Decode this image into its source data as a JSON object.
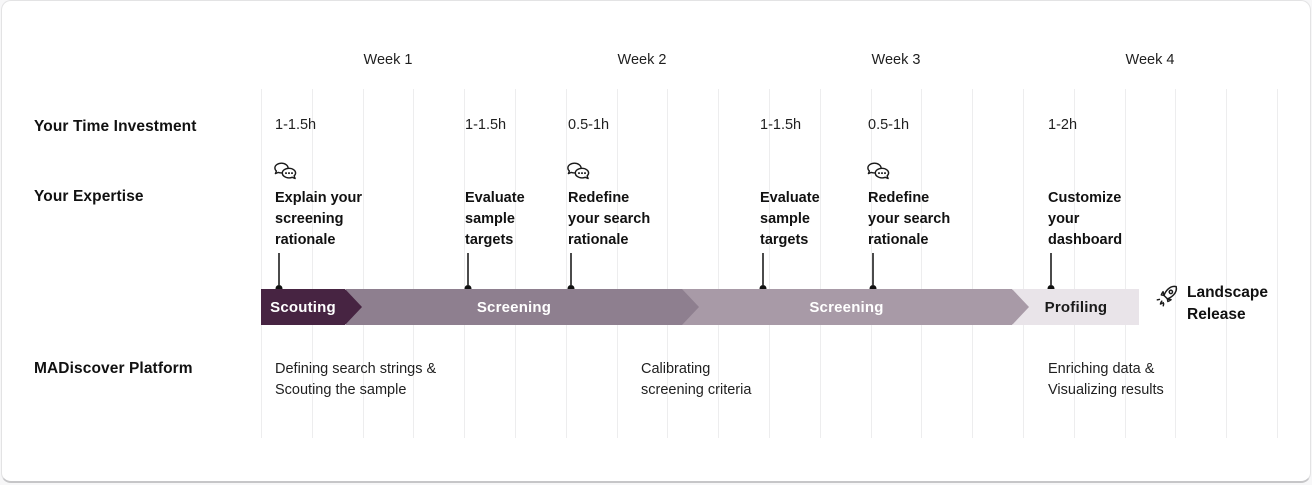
{
  "header": {
    "weeks": [
      "Week 1",
      "Week 2",
      "Week 3",
      "Week 4"
    ]
  },
  "row_labels": {
    "time": "Your Time Investment",
    "expertise": "Your Expertise",
    "platform": "MADiscover Platform"
  },
  "columns": [
    {
      "time": "1-1.5h",
      "task": "Explain your screening rationale",
      "chat_icon": true
    },
    {
      "time": "1-1.5h",
      "task": "Evaluate sample targets",
      "chat_icon": false
    },
    {
      "time": "0.5-1h",
      "task": "Redefine your search rationale",
      "chat_icon": true
    },
    {
      "time": "1-1.5h",
      "task": "Evaluate sample targets",
      "chat_icon": false
    },
    {
      "time": "0.5-1h",
      "task": "Redefine your search rationale",
      "chat_icon": true
    },
    {
      "time": "1-2h",
      "task": "Customize your dashboard",
      "chat_icon": false
    }
  ],
  "phases": [
    {
      "label": "Scouting",
      "color": "#472442",
      "text_color": "#FFFFFF"
    },
    {
      "label": "Screening",
      "color": "#8E7F8F",
      "text_color": "#FFFFFF"
    },
    {
      "label": "Screening",
      "color": "#A89AA7",
      "text_color": "#FFFFFF"
    },
    {
      "label": "Profiling",
      "color": "#E9E4E9",
      "text_color": "#1A1A1A"
    }
  ],
  "release": {
    "label": "Landscape Release"
  },
  "platform_notes": [
    "Defining search strings & Scouting the sample",
    "Calibrating screening criteria",
    "Enriching data & Visualizing results"
  ]
}
